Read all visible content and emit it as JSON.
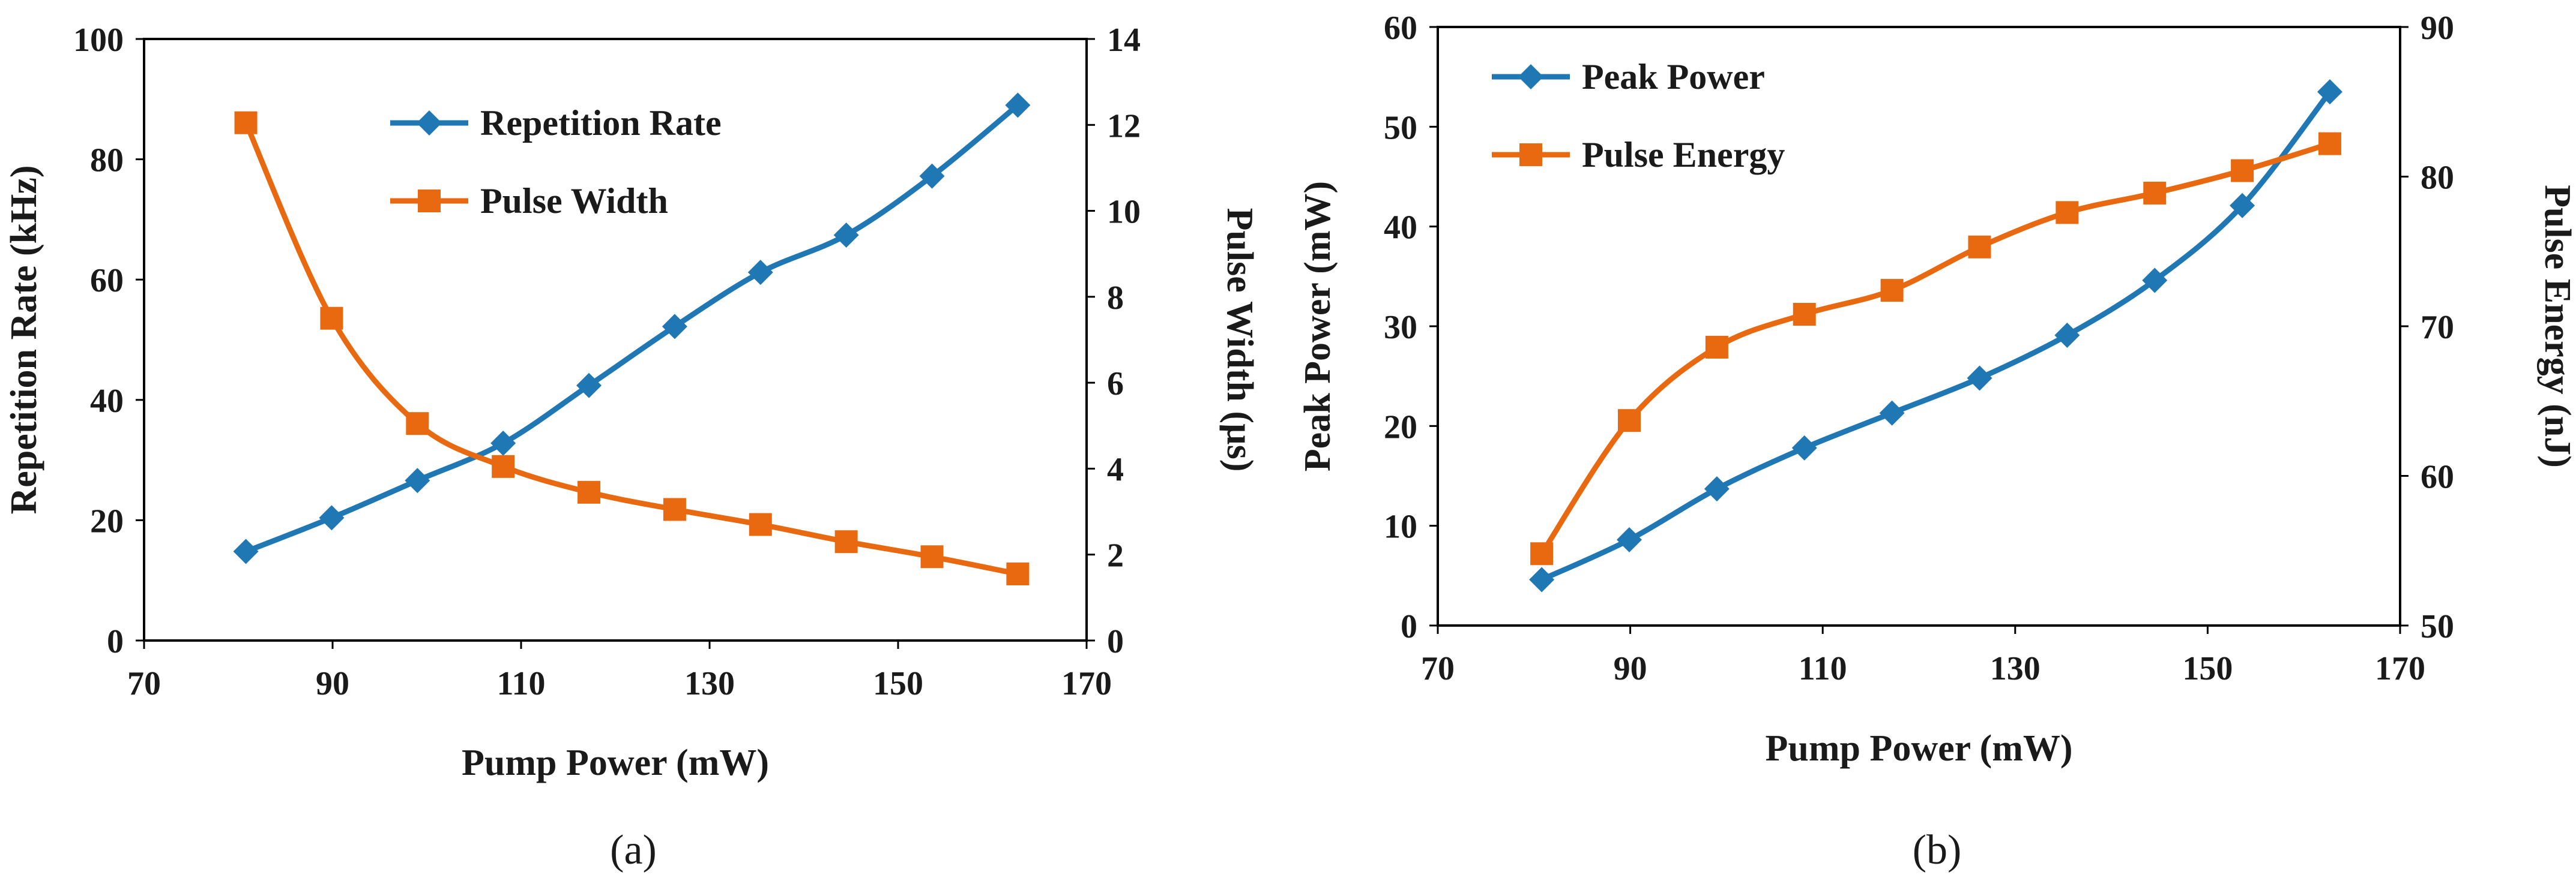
{
  "chart_data": [
    {
      "type": "line",
      "panel_label": "(a)",
      "xlabel": "Pump Power (mW)",
      "ylabel": "Repetition Rate (kHz)",
      "y2label": "Pulse Width (µs)",
      "xlim": [
        70,
        170
      ],
      "ylim": [
        0,
        100
      ],
      "y2lim": [
        0,
        14
      ],
      "xticks": [
        70,
        90,
        110,
        130,
        150,
        170
      ],
      "yticks": [
        0,
        20,
        40,
        60,
        80,
        100
      ],
      "y2ticks": [
        0,
        2,
        4,
        6,
        8,
        10,
        12,
        14
      ],
      "grid": false,
      "legend_position": "top-center",
      "x": [
        80.8,
        89.9,
        99.0,
        108.1,
        117.2,
        126.3,
        135.4,
        144.5,
        153.6,
        162.7
      ],
      "series": [
        {
          "name": "Repetition Rate",
          "axis": "left",
          "color": "#1f77b4",
          "marker": "diamond",
          "values": [
            14.8,
            20.4,
            26.6,
            32.8,
            42.4,
            52.2,
            61.2,
            67.4,
            77.2,
            89.0
          ]
        },
        {
          "name": "Pulse Width",
          "axis": "right",
          "color": "#e8690f",
          "marker": "square",
          "values": [
            12.05,
            7.5,
            5.05,
            4.05,
            3.45,
            3.05,
            2.7,
            2.3,
            1.95,
            1.55
          ]
        }
      ]
    },
    {
      "type": "line",
      "panel_label": "(b)",
      "xlabel": "Pump Power (mW)",
      "ylabel": "Peak Power (mW)",
      "y2label": "Pulse Energy (nJ)",
      "xlim": [
        70,
        170
      ],
      "ylim": [
        0,
        60
      ],
      "y2lim": [
        50,
        90
      ],
      "xticks": [
        70,
        90,
        110,
        130,
        150,
        170
      ],
      "yticks": [
        0,
        10,
        20,
        30,
        40,
        50,
        60
      ],
      "y2ticks": [
        50,
        60,
        70,
        80,
        90
      ],
      "grid": false,
      "legend_position": "top-left",
      "x": [
        80.8,
        89.9,
        99.0,
        108.1,
        117.2,
        126.3,
        135.4,
        144.5,
        153.6,
        162.7
      ],
      "series": [
        {
          "name": "Peak Power",
          "axis": "left",
          "color": "#1f77b4",
          "marker": "diamond",
          "values": [
            4.6,
            8.6,
            13.7,
            17.8,
            21.3,
            24.8,
            29.1,
            34.6,
            42.1,
            53.5
          ]
        },
        {
          "name": "Pulse Energy",
          "axis": "right",
          "color": "#e8690f",
          "marker": "square",
          "values": [
            54.8,
            63.7,
            68.6,
            70.8,
            72.4,
            75.3,
            77.6,
            78.9,
            80.4,
            82.2
          ]
        }
      ]
    }
  ]
}
